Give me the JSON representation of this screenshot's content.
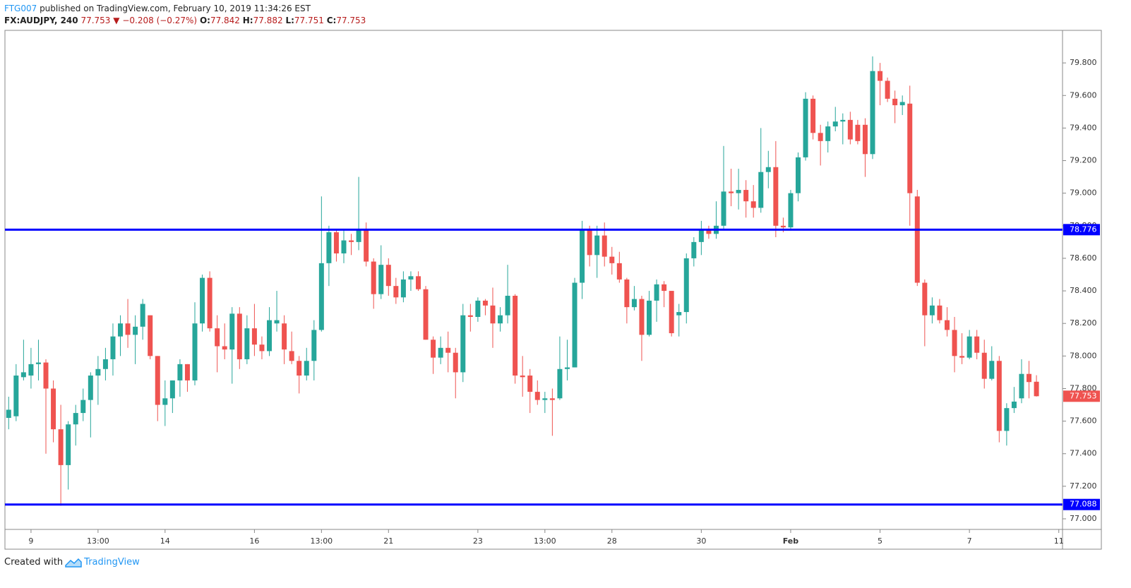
{
  "header": {
    "author": "FTG007",
    "published": "published on TradingView.com, February 10, 2019 11:34:26 EST",
    "symbol": "FX:AUDJPY, 240",
    "arrow": "▼",
    "change": "−0.208 (−0.27%)",
    "ohlc_labels": [
      "O:",
      "H:",
      "L:",
      "C:"
    ]
  },
  "chart_data": {
    "type": "candlestick",
    "categories": [
      null,
      null,
      null,
      "9",
      null,
      null,
      null,
      null,
      null,
      null,
      null,
      null,
      "13:00",
      null,
      null,
      null,
      null,
      null,
      null,
      null,
      null,
      "14",
      null,
      null,
      null,
      null,
      null,
      null,
      null,
      null,
      null,
      null,
      null,
      "16",
      null,
      null,
      null,
      null,
      null,
      null,
      null,
      null,
      "13:00",
      null,
      null,
      null,
      null,
      null,
      null,
      null,
      null,
      "21",
      null,
      null,
      null,
      null,
      null,
      null,
      null,
      null,
      null,
      null,
      null,
      "23",
      null,
      null,
      null,
      null,
      null,
      null,
      null,
      null,
      "13:00",
      null,
      null,
      null,
      null,
      null,
      null,
      null,
      null,
      "28",
      null,
      null,
      null,
      null,
      null,
      null,
      null,
      null,
      null,
      null,
      null,
      "30",
      null,
      null,
      null,
      null,
      null,
      null,
      null,
      null,
      null,
      null,
      null,
      "Feb",
      null,
      null,
      null,
      null,
      null,
      null,
      null,
      null,
      null,
      null,
      null,
      "5",
      null,
      null,
      null,
      null,
      null,
      null,
      null,
      null,
      null,
      null,
      null,
      "7",
      null,
      null,
      null,
      null,
      null,
      null,
      null,
      null,
      null,
      null,
      null,
      "11"
    ],
    "open": [
      77.62,
      77.63,
      77.87,
      77.88,
      77.95,
      77.96,
      77.8,
      77.55,
      77.33,
      77.58,
      77.65,
      77.73,
      77.88,
      77.92,
      77.98,
      78.12,
      78.2,
      78.13,
      78.18,
      78.25,
      78.0,
      77.7,
      77.74,
      77.85,
      77.95,
      77.85,
      78.2,
      78.48,
      78.17,
      78.06,
      78.04,
      78.26,
      77.98,
      78.17,
      78.07,
      78.03,
      78.2,
      78.2,
      78.03,
      77.97,
      77.88,
      77.97,
      78.16,
      78.57,
      78.76,
      78.63,
      78.71,
      78.7,
      78.78,
      78.58,
      78.38,
      78.56,
      78.43,
      78.36,
      78.47,
      78.49,
      78.41,
      78.1,
      77.99,
      78.05,
      78.02,
      77.9,
      78.25,
      78.24,
      78.34,
      78.31,
      78.2,
      78.25,
      78.37,
      77.88,
      77.88,
      77.78,
      77.73,
      77.74,
      77.74,
      77.92,
      77.93,
      78.45,
      78.78,
      78.62,
      78.74,
      78.61,
      78.57,
      78.47,
      78.3,
      78.35,
      78.13,
      78.34,
      78.44,
      78.4,
      78.25,
      78.27,
      78.6,
      78.7,
      78.78,
      78.75,
      78.8,
      79.01,
      79.0,
      79.02,
      78.95,
      78.91,
      79.13,
      79.16,
      78.8,
      78.79,
      79.0,
      79.22,
      79.58,
      79.37,
      79.32,
      79.41,
      79.44,
      79.45,
      79.42,
      79.42,
      79.24,
      79.75,
      79.69,
      79.58,
      79.54,
      79.55,
      78.98,
      78.45,
      78.25,
      78.31,
      78.22,
      78.16,
      78.0,
      77.99,
      78.12,
      78.02,
      77.86,
      77.97,
      77.54,
      77.68,
      77.74,
      77.89,
      77.842,
      null,
      null,
      null
    ],
    "high": [
      77.75,
      77.95,
      78.1,
      78.05,
      78.1,
      77.98,
      77.85,
      77.7,
      77.6,
      77.7,
      77.8,
      77.9,
      78.0,
      78.05,
      78.2,
      78.25,
      78.35,
      78.25,
      78.35,
      78.25,
      78.0,
      77.85,
      77.85,
      77.98,
      77.95,
      78.33,
      78.5,
      78.52,
      78.25,
      78.2,
      78.3,
      78.3,
      78.25,
      78.32,
      78.12,
      78.3,
      78.4,
      78.25,
      78.15,
      78.0,
      78.05,
      78.22,
      78.98,
      78.8,
      78.78,
      78.78,
      78.75,
      79.1,
      78.82,
      78.6,
      78.68,
      78.6,
      78.48,
      78.52,
      78.52,
      78.52,
      78.43,
      78.12,
      78.12,
      78.15,
      78.05,
      78.32,
      78.32,
      78.36,
      78.35,
      78.42,
      78.3,
      78.56,
      78.38,
      78.0,
      77.92,
      77.85,
      77.78,
      77.8,
      78.12,
      78.1,
      78.48,
      78.83,
      78.8,
      78.8,
      78.82,
      78.67,
      78.64,
      78.48,
      78.43,
      78.37,
      78.4,
      78.47,
      78.46,
      78.4,
      78.32,
      78.63,
      78.73,
      78.83,
      78.8,
      78.95,
      79.29,
      79.15,
      79.15,
      79.08,
      79.05,
      79.4,
      79.26,
      79.32,
      78.85,
      79.02,
      79.25,
      79.62,
      79.6,
      79.42,
      79.44,
      79.53,
      79.49,
      79.5,
      79.45,
      79.46,
      79.84,
      79.8,
      79.71,
      79.63,
      79.6,
      79.66,
      79.02,
      78.47,
      78.36,
      78.35,
      78.3,
      78.24,
      78.14,
      78.16,
      78.16,
      78.1,
      78.06,
      78.0,
      77.71,
      77.81,
      77.98,
      77.97,
      77.882,
      null,
      null,
      null
    ],
    "low": [
      77.55,
      77.6,
      77.85,
      77.8,
      77.85,
      77.4,
      77.47,
      77.08,
      77.18,
      77.45,
      77.6,
      77.5,
      77.7,
      77.85,
      77.88,
      78.0,
      78.05,
      77.95,
      78.1,
      77.98,
      77.6,
      77.57,
      77.65,
      77.75,
      77.78,
      77.82,
      78.15,
      78.15,
      77.9,
      77.98,
      77.83,
      77.92,
      77.95,
      78.0,
      77.98,
      78.0,
      78.15,
      77.95,
      77.95,
      77.77,
      77.85,
      77.85,
      78.15,
      78.43,
      78.58,
      78.57,
      78.62,
      78.65,
      78.55,
      78.29,
      78.35,
      78.37,
      78.32,
      78.33,
      78.4,
      78.4,
      78.1,
      77.89,
      77.95,
      77.9,
      77.74,
      77.84,
      78.15,
      78.21,
      78.25,
      78.05,
      78.15,
      78.2,
      77.83,
      77.75,
      77.65,
      77.7,
      77.65,
      77.51,
      77.73,
      77.85,
      77.93,
      78.35,
      78.55,
      78.48,
      78.55,
      78.5,
      78.45,
      78.2,
      78.28,
      77.97,
      78.12,
      78.21,
      78.3,
      78.12,
      78.12,
      78.2,
      78.55,
      78.62,
      78.72,
      78.72,
      78.78,
      78.92,
      78.9,
      78.85,
      78.85,
      78.88,
      79.03,
      78.73,
      78.76,
      78.77,
      78.95,
      79.2,
      79.33,
      79.17,
      79.25,
      79.38,
      79.3,
      79.3,
      79.3,
      79.1,
      79.21,
      79.54,
      79.56,
      79.43,
      79.48,
      78.8,
      78.43,
      78.06,
      78.2,
      78.2,
      78.12,
      77.9,
      77.95,
      77.98,
      77.98,
      77.8,
      77.85,
      77.47,
      77.45,
      77.65,
      77.71,
      77.74,
      77.751,
      null,
      null,
      null
    ],
    "close": [
      77.67,
      77.88,
      77.9,
      77.95,
      77.96,
      77.8,
      77.55,
      77.33,
      77.58,
      77.65,
      77.73,
      77.88,
      77.92,
      77.98,
      78.12,
      78.2,
      78.13,
      78.18,
      78.32,
      78.0,
      77.7,
      77.74,
      77.85,
      77.95,
      77.85,
      78.2,
      78.48,
      78.17,
      78.06,
      78.04,
      78.26,
      77.98,
      78.17,
      78.07,
      78.03,
      78.22,
      78.22,
      78.04,
      77.97,
      77.88,
      77.97,
      78.16,
      78.57,
      78.76,
      78.63,
      78.71,
      78.7,
      78.78,
      78.58,
      78.38,
      78.56,
      78.43,
      78.36,
      78.47,
      78.49,
      78.41,
      78.1,
      77.99,
      78.05,
      78.02,
      77.9,
      78.25,
      78.24,
      78.34,
      78.31,
      78.2,
      78.25,
      78.37,
      77.88,
      77.87,
      77.78,
      77.73,
      77.74,
      77.73,
      77.92,
      77.93,
      78.45,
      78.78,
      78.62,
      78.74,
      78.61,
      78.57,
      78.47,
      78.3,
      78.35,
      78.13,
      78.34,
      78.44,
      78.4,
      78.14,
      78.27,
      78.6,
      78.7,
      78.78,
      78.75,
      78.8,
      79.01,
      79.0,
      79.02,
      78.95,
      78.91,
      79.13,
      79.16,
      78.8,
      78.79,
      79.0,
      79.22,
      79.58,
      79.37,
      79.32,
      79.41,
      79.44,
      79.45,
      79.33,
      79.32,
      79.24,
      79.75,
      79.69,
      79.58,
      79.54,
      79.56,
      79.0,
      78.45,
      78.25,
      78.31,
      78.22,
      78.16,
      78.0,
      77.99,
      78.12,
      78.02,
      77.86,
      77.97,
      77.54,
      77.68,
      77.72,
      77.89,
      77.84,
      77.753,
      null,
      null,
      null
    ],
    "up_color": "#26a69a",
    "down_color": "#ef5350",
    "ylim": [
      76.935,
      80.0
    ],
    "yticks": [
      {
        "value": 77.0,
        "label": "77.000"
      },
      {
        "value": 77.2,
        "label": "77.200"
      },
      {
        "value": 77.4,
        "label": "77.400"
      },
      {
        "value": 77.6,
        "label": "77.600"
      },
      {
        "value": 77.8,
        "label": "77.800"
      },
      {
        "value": 78.0,
        "label": "78.000"
      },
      {
        "value": 78.2,
        "label": "78.200"
      },
      {
        "value": 78.4,
        "label": "78.400"
      },
      {
        "value": 78.6,
        "label": "78.600"
      },
      {
        "value": 78.8,
        "label": "78.800"
      },
      {
        "value": 79.0,
        "label": "79.000"
      },
      {
        "value": 79.2,
        "label": "79.200"
      },
      {
        "value": 79.4,
        "label": "79.400"
      },
      {
        "value": 79.6,
        "label": "79.600"
      },
      {
        "value": 79.8,
        "label": "79.800"
      }
    ],
    "grid": false,
    "hlines": [
      {
        "value": 78.776,
        "color": "#0000ff"
      },
      {
        "value": 77.088,
        "color": "#0000ff"
      }
    ]
  },
  "footer": {
    "created": "Created with",
    "brand": "TradingView"
  }
}
